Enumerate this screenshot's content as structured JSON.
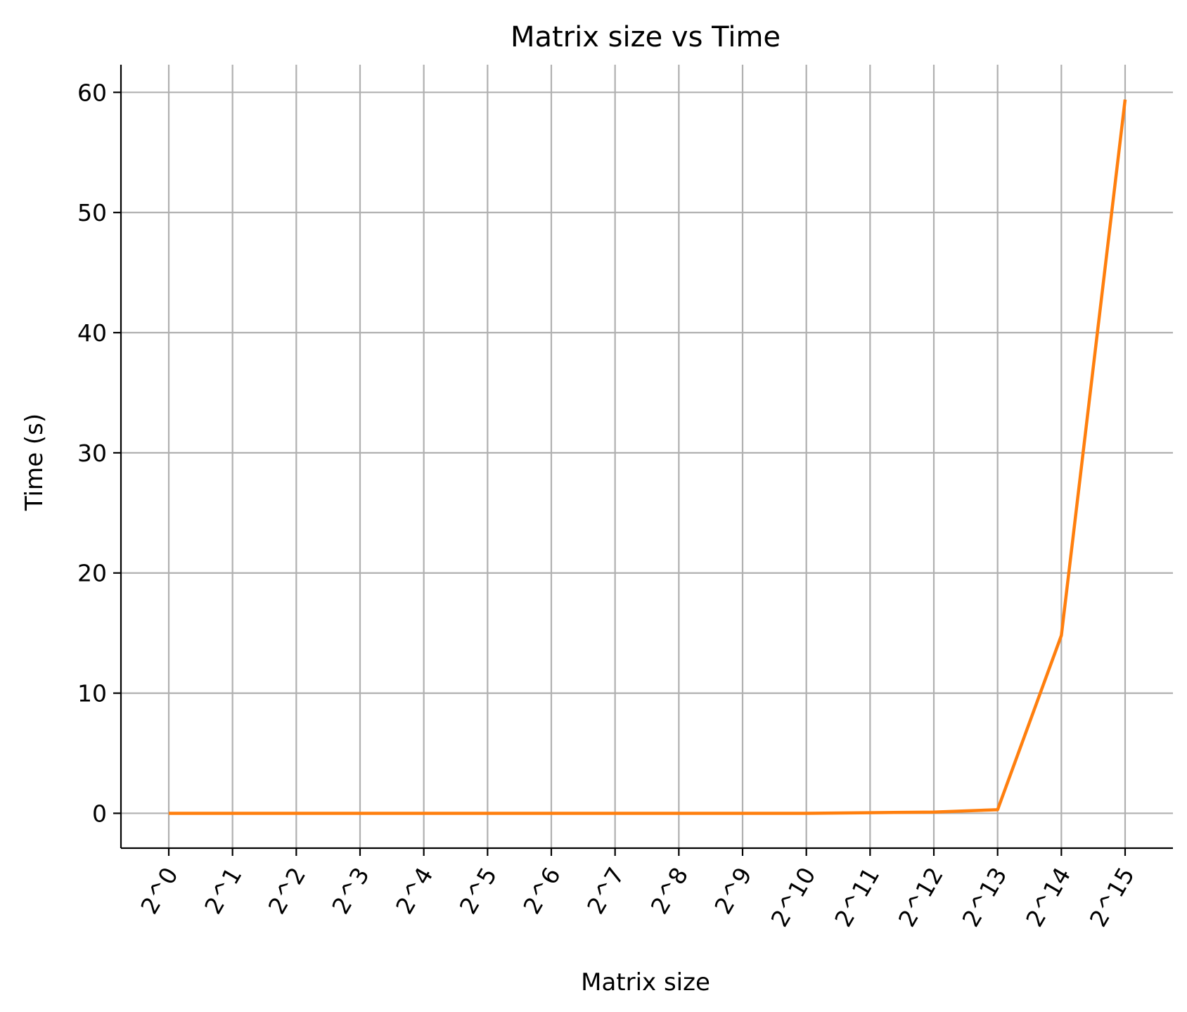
{
  "chart_data": {
    "type": "line",
    "title": "Matrix size vs Time",
    "xlabel": "Matrix size",
    "ylabel": "Time (s)",
    "categories": [
      "2^0",
      "2^1",
      "2^2",
      "2^3",
      "2^4",
      "2^5",
      "2^6",
      "2^7",
      "2^8",
      "2^9",
      "2^10",
      "2^11",
      "2^12",
      "2^13",
      "2^14",
      "2^15"
    ],
    "series": [
      {
        "color": "#ff7f0e",
        "values": [
          0,
          0,
          0,
          0,
          0,
          0,
          0,
          0,
          0,
          0,
          0,
          0.05,
          0.1,
          0.3,
          14.8,
          59.4
        ]
      }
    ],
    "ylim": [
      -2.9,
      62.3
    ],
    "yticks": [
      0,
      10,
      20,
      30,
      40,
      50,
      60
    ],
    "ytick_labels": [
      "0",
      "10",
      "20",
      "30",
      "40",
      "50",
      "60"
    ],
    "grid": true,
    "xtick_rotation": 60
  }
}
